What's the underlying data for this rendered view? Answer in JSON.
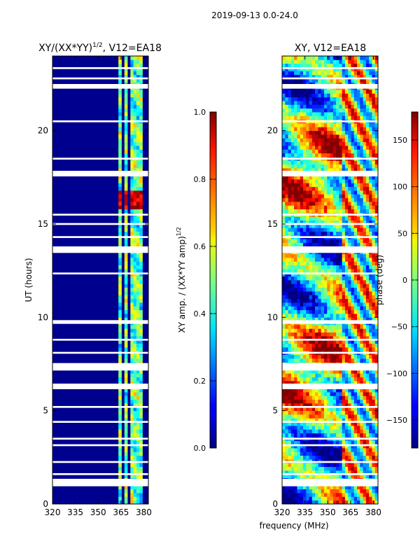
{
  "figure": {
    "title": "2019-09-13 0.0-24.0"
  },
  "chart_data": [
    {
      "type": "heatmap",
      "title_main": "XY/(XX*YY)",
      "title_sup": "1/2",
      "title_rest": ", V12=EA18",
      "xlabel": "",
      "ylabel": "UT (hours)",
      "xlim": [
        320,
        383
      ],
      "ylim": [
        0,
        24
      ],
      "xticks": [
        "320",
        "335",
        "350",
        "365",
        "380"
      ],
      "yticks": [
        "0",
        "5",
        "10",
        "15",
        "20"
      ],
      "colorbar": {
        "label_main": "XY amp. / (XX*YY amp)",
        "label_sup": "1/2",
        "range": [
          0.0,
          1.0
        ],
        "ticks": [
          "0.0",
          "0.2",
          "0.4",
          "0.6",
          "0.8",
          "1.0"
        ]
      },
      "gap_bands_hours": [
        [
          0.95,
          1.35
        ],
        [
          1.55,
          1.65
        ],
        [
          2.2,
          2.3
        ],
        [
          3.1,
          3.2
        ],
        [
          3.45,
          3.55
        ],
        [
          4.35,
          4.45
        ],
        [
          5.15,
          5.25
        ],
        [
          6.15,
          6.45
        ],
        [
          7.15,
          7.55
        ],
        [
          8.05,
          8.15
        ],
        [
          8.75,
          8.85
        ],
        [
          9.65,
          9.85
        ],
        [
          12.3,
          12.4
        ],
        [
          13.45,
          13.8
        ],
        [
          14.25,
          14.35
        ],
        [
          14.95,
          15.05
        ],
        [
          15.45,
          15.55
        ],
        [
          17.55,
          17.85
        ],
        [
          18.45,
          18.55
        ],
        [
          20.45,
          20.55
        ],
        [
          22.25,
          22.5
        ],
        [
          22.75,
          22.85
        ],
        [
          23.3,
          23.4
        ]
      ],
      "bright_channel_bands_MHz": [
        [
          363,
          366
        ],
        [
          367,
          370
        ],
        [
          372,
          375
        ],
        [
          376,
          379
        ]
      ],
      "peak_window_hours": [
        15.8,
        16.8
      ]
    },
    {
      "type": "heatmap",
      "title": "XY, V12=EA18",
      "xlabel": "frequency (MHz)",
      "ylabel": "",
      "xlim": [
        320,
        383
      ],
      "ylim": [
        0,
        24
      ],
      "xticks": [
        "320",
        "335",
        "350",
        "365",
        "380"
      ],
      "yticks": [
        "0",
        "5",
        "10",
        "15",
        "20"
      ],
      "colorbar": {
        "label": "phase (deg)",
        "range": [
          -180,
          180
        ],
        "ticks": [
          "-150",
          "-100",
          "-50",
          "0",
          "50",
          "100",
          "150"
        ]
      }
    }
  ],
  "colors": {
    "axis": "#000000",
    "low": "#00008f",
    "high": "#7f0000"
  }
}
